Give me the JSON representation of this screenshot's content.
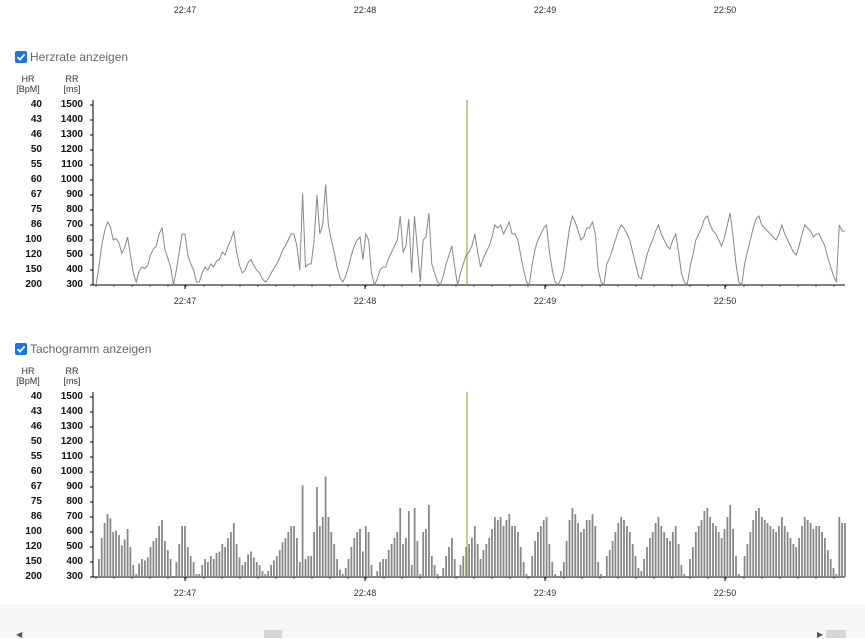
{
  "top_axis": {
    "ticks": [
      "22:47",
      "22:48",
      "22:49",
      "22:50"
    ]
  },
  "sections": [
    {
      "toggle_label": "Herzrate anzeigen",
      "checked": true
    },
    {
      "toggle_label": "Tachogramm anzeigen",
      "checked": true
    }
  ],
  "units": {
    "hr_line1": "HR",
    "hr_line2": "[BpM]",
    "rr_line1": "RR",
    "rr_line2": "[ms]"
  },
  "colors": {
    "series": "#888888",
    "cursor": "#8aa31a",
    "checkbox": "#1a73e8",
    "axis": "#000000"
  },
  "chart_data": [
    {
      "type": "line",
      "title": "",
      "xlabel": "",
      "ylabel": "RR [ms]",
      "x_ticks": [
        "22:47",
        "22:48",
        "22:49",
        "22:50"
      ],
      "y_ticks_rr": [
        1500,
        1400,
        1300,
        1200,
        1100,
        1000,
        900,
        800,
        700,
        600,
        500,
        400,
        300
      ],
      "y_ticks_hr": [
        40,
        43,
        46,
        50,
        55,
        60,
        67,
        75,
        86,
        100,
        120,
        150,
        200
      ],
      "ylim": [
        300,
        1500
      ],
      "cursor_time": "22:48:34",
      "series": [
        {
          "values": [
            300,
            420,
            560,
            660,
            720,
            690,
            600,
            610,
            580,
            510,
            550,
            620,
            500,
            380,
            320,
            390,
            420,
            410,
            430,
            500,
            540,
            560,
            640,
            680,
            540,
            480,
            420,
            300,
            400,
            520,
            640,
            640,
            500,
            440,
            400,
            320,
            320,
            380,
            420,
            400,
            440,
            420,
            460,
            470,
            520,
            500,
            560,
            600,
            660,
            520,
            430,
            380,
            400,
            450,
            470,
            430,
            400,
            380,
            340,
            320,
            340,
            380,
            410,
            440,
            480,
            530,
            560,
            600,
            640,
            640,
            560,
            400,
            910,
            420,
            440,
            440,
            600,
            900,
            640,
            700,
            970,
            700,
            600,
            520,
            420,
            350,
            320,
            360,
            420,
            500,
            560,
            600,
            620,
            470,
            640,
            600,
            380,
            300,
            340,
            400,
            420,
            420,
            480,
            520,
            560,
            600,
            760,
            520,
            560,
            740,
            380,
            760,
            540,
            320,
            600,
            620,
            780,
            440,
            380,
            320,
            300,
            360,
            440,
            500,
            560,
            420,
            300,
            380,
            440,
            500,
            520,
            560,
            640,
            520,
            420,
            480,
            520,
            560,
            620,
            700,
            680,
            700,
            640,
            680,
            720,
            640,
            640,
            600,
            500,
            400,
            320,
            300,
            440,
            540,
            600,
            640,
            680,
            700,
            520,
            400,
            320,
            300,
            340,
            400,
            540,
            680,
            760,
            720,
            660,
            600,
            620,
            680,
            680,
            720,
            640,
            400,
            320,
            300,
            440,
            480,
            540,
            600,
            660,
            700,
            680,
            640,
            600,
            520,
            440,
            360,
            340,
            420,
            500,
            560,
            600,
            660,
            700,
            640,
            600,
            560,
            540,
            600,
            640,
            520,
            380,
            320,
            300,
            420,
            500,
            600,
            640,
            680,
            740,
            760,
            700,
            660,
            640,
            600,
            560,
            620,
            700,
            780,
            620,
            440,
            320,
            300,
            440,
            520,
            600,
            680,
            740,
            760,
            700,
            680,
            660,
            640,
            620,
            600,
            640,
            700,
            640,
            600,
            560,
            520,
            500,
            560,
            640,
            700,
            680,
            660,
            620,
            640,
            640,
            600,
            560,
            480,
            420,
            360,
            320,
            700,
            660,
            660
          ]
        }
      ]
    },
    {
      "type": "bar",
      "title": "",
      "xlabel": "",
      "ylabel": "RR [ms]",
      "x_ticks": [
        "22:47",
        "22:48",
        "22:49",
        "22:50"
      ],
      "y_ticks_rr": [
        1500,
        1400,
        1300,
        1200,
        1100,
        1000,
        900,
        800,
        700,
        600,
        500,
        400,
        300
      ],
      "y_ticks_hr": [
        40,
        43,
        46,
        50,
        55,
        60,
        67,
        75,
        86,
        100,
        120,
        150,
        200
      ],
      "ylim": [
        300,
        1500
      ],
      "cursor_time": "22:48:34",
      "series": [
        {
          "values": [
            300,
            420,
            560,
            660,
            720,
            690,
            600,
            610,
            580,
            510,
            550,
            620,
            500,
            380,
            320,
            390,
            420,
            410,
            430,
            500,
            540,
            560,
            640,
            680,
            540,
            480,
            420,
            300,
            400,
            520,
            640,
            640,
            500,
            440,
            400,
            320,
            320,
            380,
            420,
            400,
            440,
            420,
            460,
            470,
            520,
            500,
            560,
            600,
            660,
            520,
            430,
            380,
            400,
            450,
            470,
            430,
            400,
            380,
            340,
            320,
            340,
            380,
            410,
            440,
            480,
            530,
            560,
            600,
            640,
            640,
            560,
            400,
            910,
            420,
            440,
            440,
            600,
            900,
            640,
            700,
            970,
            700,
            600,
            520,
            420,
            350,
            320,
            360,
            420,
            500,
            560,
            600,
            620,
            470,
            640,
            600,
            380,
            300,
            340,
            400,
            420,
            420,
            480,
            520,
            560,
            600,
            760,
            520,
            560,
            740,
            380,
            760,
            540,
            320,
            600,
            620,
            780,
            440,
            380,
            320,
            300,
            360,
            440,
            500,
            560,
            420,
            300,
            380,
            440,
            500,
            520,
            560,
            640,
            520,
            420,
            480,
            520,
            560,
            620,
            700,
            680,
            700,
            640,
            680,
            720,
            640,
            640,
            600,
            500,
            400,
            320,
            300,
            440,
            540,
            600,
            640,
            680,
            700,
            520,
            400,
            320,
            300,
            340,
            400,
            540,
            680,
            760,
            720,
            660,
            600,
            620,
            680,
            680,
            720,
            640,
            400,
            320,
            300,
            440,
            480,
            540,
            600,
            660,
            700,
            680,
            640,
            600,
            520,
            440,
            360,
            340,
            420,
            500,
            560,
            600,
            660,
            700,
            640,
            600,
            560,
            540,
            600,
            640,
            520,
            380,
            320,
            300,
            420,
            500,
            600,
            640,
            680,
            740,
            760,
            700,
            660,
            640,
            600,
            560,
            620,
            700,
            780,
            620,
            440,
            320,
            300,
            440,
            520,
            600,
            680,
            740,
            760,
            700,
            680,
            660,
            640,
            620,
            600,
            640,
            700,
            640,
            600,
            560,
            520,
            500,
            560,
            640,
            700,
            680,
            660,
            620,
            640,
            640,
            600,
            560,
            480,
            420,
            360,
            320,
            700,
            660,
            660
          ]
        }
      ]
    }
  ]
}
